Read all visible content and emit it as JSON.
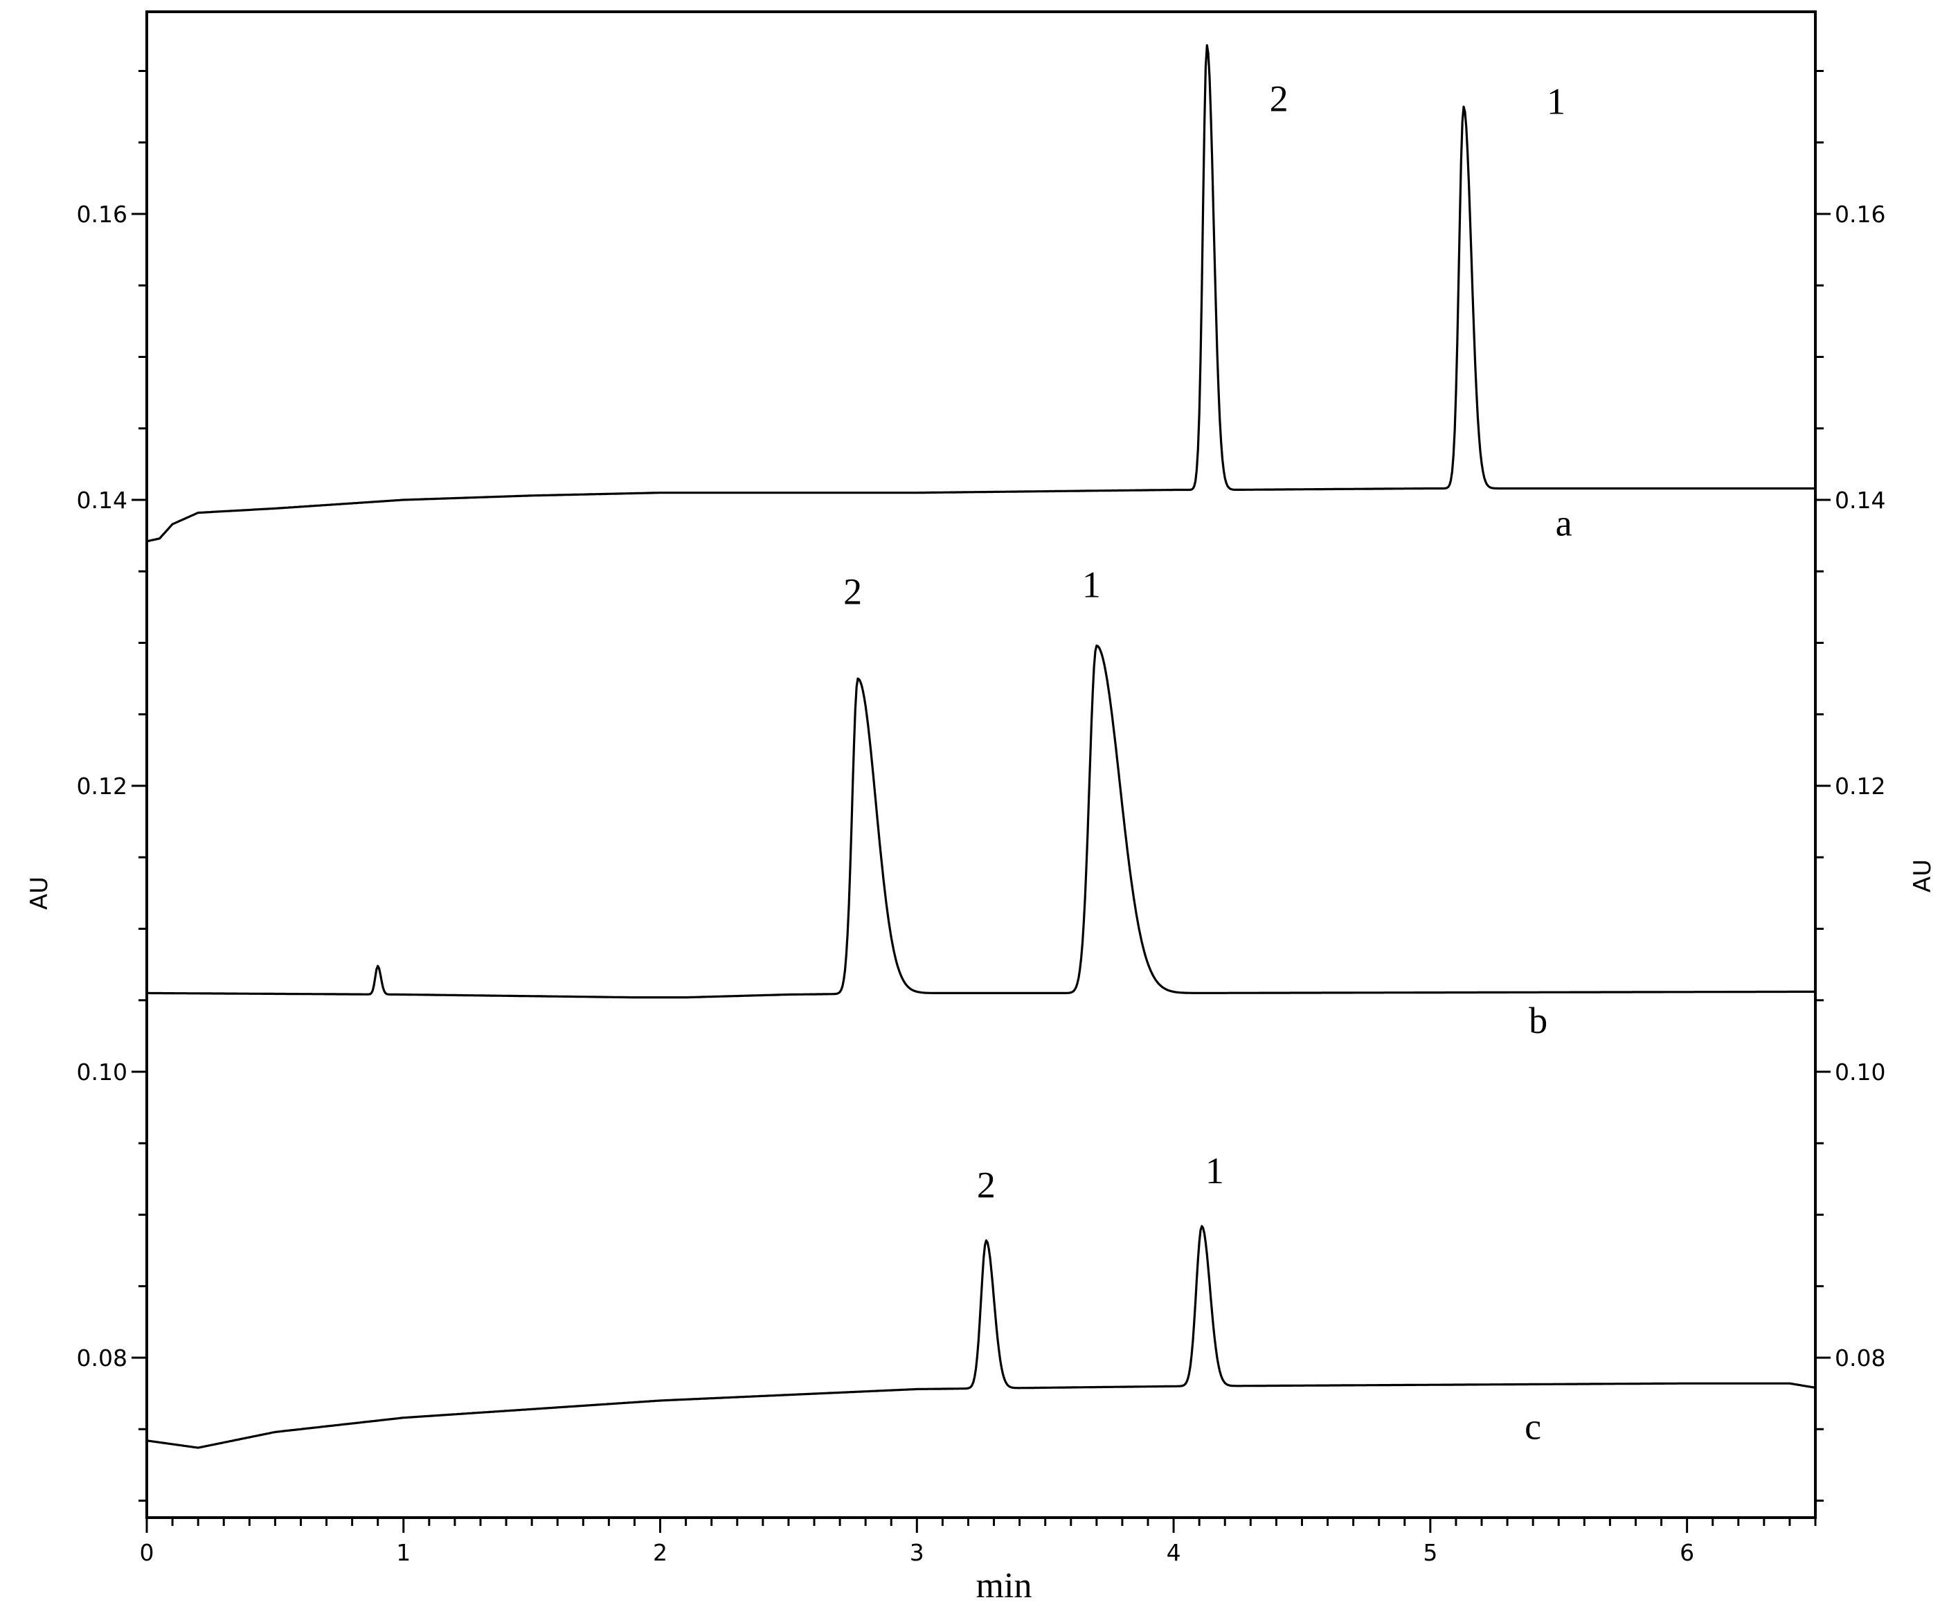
{
  "chart_data": {
    "type": "line",
    "title": "",
    "xlabel": "min",
    "ylabel_left": "AU",
    "ylabel_right": "AU",
    "xlim": [
      0,
      6.5
    ],
    "ylim": [
      0.069,
      0.174
    ],
    "grid": false,
    "x_ticks": [
      "0",
      "1",
      "2",
      "3",
      "4",
      "5",
      "6"
    ],
    "y_ticks_left": [
      "0.08",
      "0.10",
      "0.12",
      "0.14",
      "0.16"
    ],
    "y_ticks_right": [
      "0.08",
      "0.10",
      "0.12",
      "0.14",
      "0.16"
    ],
    "x_minor_step": 0.1,
    "y_minor_step": 0.005,
    "series": [
      {
        "name": "a",
        "baseline": [
          [
            0,
            0.1371
          ],
          [
            0.05,
            0.1373
          ],
          [
            0.1,
            0.1383
          ],
          [
            0.2,
            0.1391
          ],
          [
            0.5,
            0.1394
          ],
          [
            1.0,
            0.14
          ],
          [
            1.5,
            0.1403
          ],
          [
            2.0,
            0.1405
          ],
          [
            3.0,
            0.1405
          ],
          [
            4.0,
            0.1407
          ],
          [
            4.2,
            0.1407
          ],
          [
            5.0,
            0.1408
          ],
          [
            6.5,
            0.1408
          ]
        ],
        "peaks": [
          {
            "label": "2",
            "rt": 4.13,
            "apex": 0.1718,
            "sigma_left": 0.016,
            "sigma_right": 0.026
          },
          {
            "label": "1",
            "rt": 5.13,
            "apex": 0.1675,
            "sigma_left": 0.018,
            "sigma_right": 0.03
          }
        ],
        "trace_label": "a",
        "trace_label_pos": [
          5.52,
          0.1375
        ]
      },
      {
        "name": "b",
        "baseline": [
          [
            0,
            0.1055
          ],
          [
            1.0,
            0.1054
          ],
          [
            1.9,
            0.1052
          ],
          [
            2.1,
            0.1052
          ],
          [
            2.5,
            0.1054
          ],
          [
            3.0,
            0.1055
          ],
          [
            4.0,
            0.1055
          ],
          [
            6.5,
            0.1056
          ]
        ],
        "peaks": [
          {
            "label": "",
            "rt": 0.9,
            "apex": 0.1074,
            "sigma_left": 0.01,
            "sigma_right": 0.012
          },
          {
            "label": "2",
            "rt": 2.77,
            "apex": 0.1275,
            "sigma_left": 0.022,
            "sigma_right": 0.07
          },
          {
            "label": "1",
            "rt": 3.7,
            "apex": 0.1298,
            "sigma_left": 0.028,
            "sigma_right": 0.09
          }
        ],
        "trace_label": "b",
        "trace_label_pos": [
          5.42,
          0.1027
        ]
      },
      {
        "name": "c",
        "baseline": [
          [
            0,
            0.0742
          ],
          [
            0.2,
            0.0737
          ],
          [
            0.5,
            0.0748
          ],
          [
            1.0,
            0.0758
          ],
          [
            2.0,
            0.077
          ],
          [
            3.0,
            0.0778
          ],
          [
            4.0,
            0.078
          ],
          [
            6.0,
            0.0782
          ],
          [
            6.4,
            0.0782
          ],
          [
            6.5,
            0.0779
          ]
        ],
        "peaks": [
          {
            "label": "2",
            "rt": 3.27,
            "apex": 0.0882,
            "sigma_left": 0.02,
            "sigma_right": 0.03
          },
          {
            "label": "1",
            "rt": 4.11,
            "apex": 0.0892,
            "sigma_left": 0.022,
            "sigma_right": 0.032
          }
        ],
        "trace_label": "c",
        "trace_label_pos": [
          5.4,
          0.0743
        ]
      }
    ],
    "peak_labels": [
      {
        "text": "2",
        "x": 4.41,
        "y": 0.1672
      },
      {
        "text": "1",
        "x": 5.49,
        "y": 0.167
      },
      {
        "text": "2",
        "x": 2.75,
        "y": 0.1327
      },
      {
        "text": "1",
        "x": 3.68,
        "y": 0.1332
      },
      {
        "text": "2",
        "x": 3.27,
        "y": 0.0912
      },
      {
        "text": "1",
        "x": 4.16,
        "y": 0.0922
      }
    ]
  }
}
